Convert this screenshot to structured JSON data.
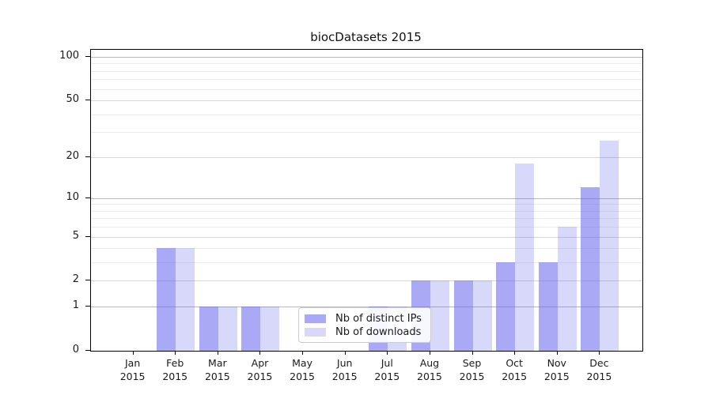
{
  "title": "biocDatasets 2015",
  "chart_data": {
    "type": "bar",
    "title": "biocDatasets 2015",
    "categories": [
      "Jan 2015",
      "Feb 2015",
      "Mar 2015",
      "Apr 2015",
      "May 2015",
      "Jun 2015",
      "Jul 2015",
      "Aug 2015",
      "Sep 2015",
      "Oct 2015",
      "Nov 2015",
      "Dec 2015"
    ],
    "category_months": [
      "Jan",
      "Feb",
      "Mar",
      "Apr",
      "May",
      "Jun",
      "Jul",
      "Aug",
      "Sep",
      "Oct",
      "Nov",
      "Dec"
    ],
    "category_year": "2015",
    "series": [
      {
        "name": "Nb of distinct IPs",
        "color": "rgba(99,99,238,0.55)",
        "values": [
          0,
          4,
          1,
          1,
          0,
          0,
          1,
          2,
          2,
          3,
          3,
          12
        ]
      },
      {
        "name": "Nb of downloads",
        "color": "rgba(99,99,238,0.25)",
        "values": [
          0,
          4,
          1,
          1,
          0,
          0,
          1,
          2,
          2,
          18,
          6,
          26
        ]
      }
    ],
    "yscale": "log1p",
    "yticks": [
      0,
      1,
      2,
      5,
      10,
      20,
      50,
      100
    ],
    "ytick_major": [
      1,
      10,
      100
    ],
    "yminor_gridlines": [
      3,
      4,
      6,
      7,
      8,
      9,
      30,
      40,
      60,
      70,
      80,
      90
    ],
    "ylim": [
      0,
      112
    ],
    "xlabel": "",
    "ylabel": "",
    "grid": true,
    "legend_position": "lower-center",
    "colors": {
      "distinct_ips_bar": "#a9a9f6",
      "downloads_bar": "#d8d8fa",
      "axis": "#000000",
      "grid_major": "#b9b9b9",
      "grid_minor": "#ececec"
    }
  }
}
